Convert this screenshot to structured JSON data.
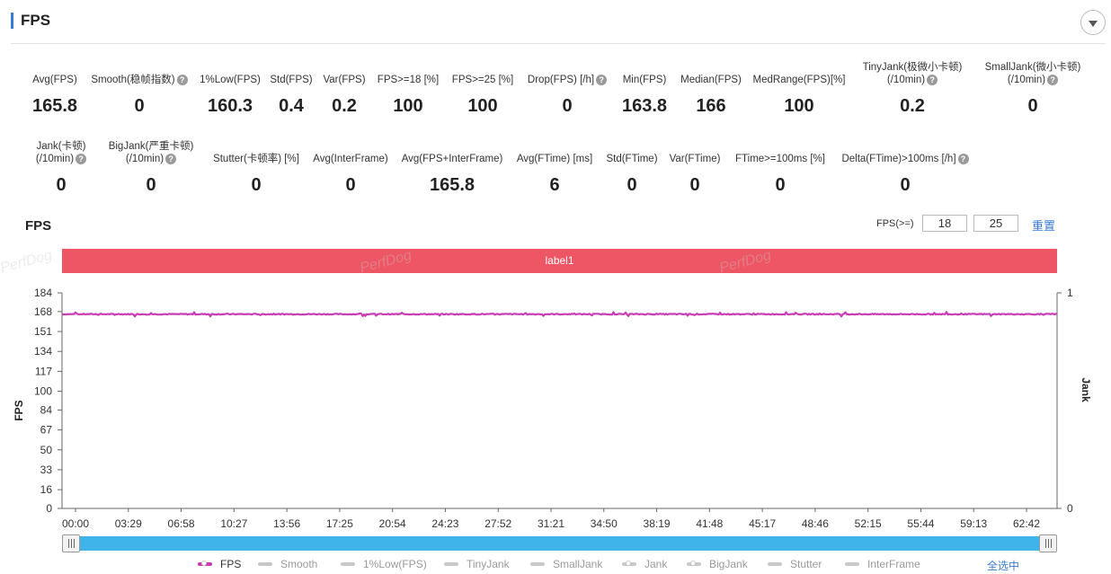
{
  "header": {
    "title": "FPS"
  },
  "metrics_row1": [
    {
      "label": "Avg(FPS)",
      "value": "165.8",
      "help": false
    },
    {
      "label": "Smooth(稳帧指数)",
      "value": "0",
      "help": true
    },
    {
      "label": "1%Low(FPS)",
      "value": "160.3",
      "help": false
    },
    {
      "label": "Std(FPS)",
      "value": "0.4",
      "help": false
    },
    {
      "label": "Var(FPS)",
      "value": "0.2",
      "help": false
    },
    {
      "label": "FPS>=18 [%]",
      "value": "100",
      "help": false
    },
    {
      "label": "FPS>=25 [%]",
      "value": "100",
      "help": false
    },
    {
      "label": "Drop(FPS) [/h]",
      "value": "0",
      "help": true
    },
    {
      "label": "Min(FPS)",
      "value": "163.8",
      "help": false
    },
    {
      "label": "Median(FPS)",
      "value": "166",
      "help": false
    },
    {
      "label": "MedRange(FPS)[%]",
      "value": "100",
      "help": false
    },
    {
      "label": "TinyJank(极微小卡顿)",
      "label2": "(/10min)",
      "value": "0.2",
      "help": true
    },
    {
      "label": "SmallJank(微小卡顿)",
      "label2": "(/10min)",
      "value": "0",
      "help": true
    }
  ],
  "metrics_row2": [
    {
      "label": "Jank(卡顿)",
      "label2": "(/10min)",
      "value": "0",
      "help": true
    },
    {
      "label": "BigJank(严重卡顿)",
      "label2": "(/10min)",
      "value": "0",
      "help": true
    },
    {
      "label": "Stutter(卡顿率) [%]",
      "value": "0",
      "help": false
    },
    {
      "label": "Avg(InterFrame)",
      "value": "0",
      "help": false
    },
    {
      "label": "Avg(FPS+InterFrame)",
      "value": "165.8",
      "help": false
    },
    {
      "label": "Avg(FTime) [ms]",
      "value": "6",
      "help": false
    },
    {
      "label": "Std(FTime)",
      "value": "0",
      "help": false
    },
    {
      "label": "Var(FTime)",
      "value": "0",
      "help": false
    },
    {
      "label": "FTime>=100ms [%]",
      "value": "0",
      "help": false
    },
    {
      "label": "Delta(FTime)>100ms [/h]",
      "value": "0",
      "help": true
    }
  ],
  "chart_controls": {
    "title": "FPS",
    "threshold_label": "FPS(>=)",
    "threshold1": "18",
    "threshold2": "25",
    "reset_label": "重置",
    "label_band": "label1",
    "watermark": "PerfDog",
    "select_all": "全选中"
  },
  "legend": [
    {
      "name": "FPS",
      "active": true,
      "color": "#c83cb4",
      "marker": "dot"
    },
    {
      "name": "Smooth",
      "active": false,
      "marker": "line"
    },
    {
      "name": "1%Low(FPS)",
      "active": false,
      "marker": "line"
    },
    {
      "name": "TinyJank",
      "active": false,
      "marker": "line"
    },
    {
      "name": "SmallJank",
      "active": false,
      "marker": "line"
    },
    {
      "name": "Jank",
      "active": false,
      "marker": "dot"
    },
    {
      "name": "BigJank",
      "active": false,
      "marker": "dot"
    },
    {
      "name": "Stutter",
      "active": false,
      "marker": "line"
    },
    {
      "name": "InterFrame",
      "active": false,
      "marker": "line"
    }
  ],
  "chart_data": {
    "type": "line",
    "ylabel": "FPS",
    "y2label": "Jank",
    "ylim": [
      0,
      184
    ],
    "y_ticks": [
      0,
      16,
      33,
      50,
      67,
      84,
      100,
      117,
      134,
      151,
      168,
      184
    ],
    "y2_ticks": [
      0,
      1
    ],
    "x_ticks": [
      "00:00",
      "03:29",
      "06:58",
      "10:27",
      "13:56",
      "17:25",
      "20:54",
      "24:23",
      "27:52",
      "31:21",
      "34:50",
      "38:19",
      "41:48",
      "45:17",
      "48:46",
      "52:15",
      "55:44",
      "59:13",
      "62:42"
    ],
    "x_end_minutes": 65.0,
    "series": [
      {
        "name": "FPS",
        "color": "#c83cb4",
        "mean": 165.8,
        "min": 163.8,
        "max": 167.8
      }
    ],
    "grid": false
  }
}
